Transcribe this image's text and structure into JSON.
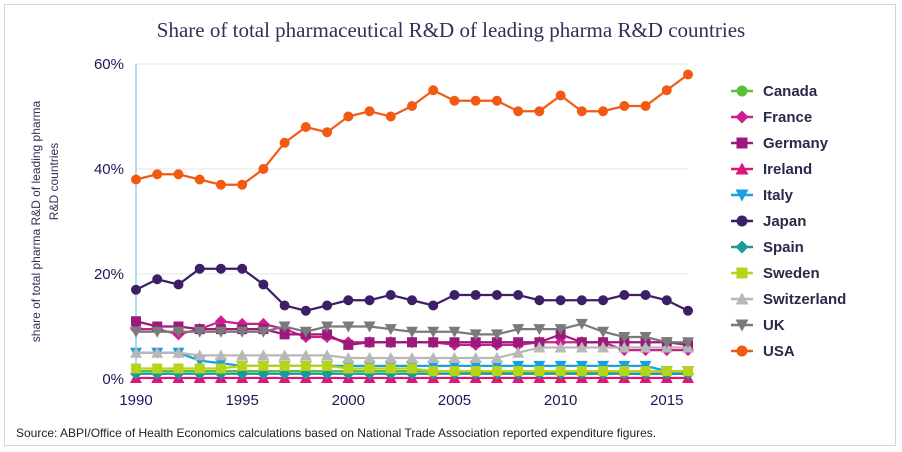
{
  "title": "Share of total pharmaceutical R&D of leading pharma R&D countries",
  "source": "Source: ABPI/Office of Health Economics calculations based on National Trade Association reported expenditure figures.",
  "chart_data": {
    "type": "line",
    "title": "Share of total pharmaceutical R&D of leading pharma R&D countries",
    "ylabel_lines": [
      "share of total pharma R&D of leading pharma",
      "R&D countries"
    ],
    "xlabel": "",
    "x": [
      1990,
      1991,
      1992,
      1993,
      1994,
      1995,
      1996,
      1997,
      1998,
      1999,
      2000,
      2001,
      2002,
      2003,
      2004,
      2005,
      2006,
      2007,
      2008,
      2009,
      2010,
      2011,
      2012,
      2013,
      2014,
      2015,
      2016
    ],
    "xticks": [
      1990,
      1995,
      2000,
      2005,
      2010,
      2015
    ],
    "xtick_labels": [
      "1990",
      "1995",
      "2000",
      "2005",
      "2010",
      "2015"
    ],
    "ylim": [
      0,
      60
    ],
    "yticks": [
      0,
      20,
      40,
      60
    ],
    "ytick_labels": [
      "0%",
      "20%",
      "40%",
      "60%"
    ],
    "grid": "horizontal",
    "legend_position": "right",
    "series": [
      {
        "name": "Canada",
        "color": "#5cbf3a",
        "marker": "circle",
        "values": [
          1.5,
          1.5,
          1.5,
          1.5,
          1.5,
          1.5,
          1.5,
          1.5,
          1.5,
          1.5,
          1.5,
          1.5,
          1.5,
          1.5,
          1.5,
          1.5,
          1.2,
          1.2,
          1.2,
          1.2,
          1.2,
          1.2,
          1.2,
          1.0,
          1.0,
          1.0,
          1.0
        ]
      },
      {
        "name": "France",
        "color": "#cc1f8f",
        "marker": "diamond",
        "values": [
          9.5,
          9.5,
          8.5,
          9.5,
          11,
          10.5,
          10.5,
          9.5,
          8,
          8,
          7,
          7,
          7,
          7,
          7,
          6.5,
          6.5,
          6.5,
          6.5,
          7,
          7,
          7,
          7,
          5.5,
          5.5,
          5.5,
          5.5
        ]
      },
      {
        "name": "Germany",
        "color": "#9b1a7a",
        "marker": "square",
        "values": [
          11,
          10,
          10,
          9.5,
          9.5,
          9.5,
          9.5,
          8.5,
          8.5,
          8.5,
          6.5,
          7,
          7,
          7,
          7,
          7,
          7,
          7,
          7,
          7,
          8.5,
          7,
          7,
          7,
          7,
          7,
          6.5
        ]
      },
      {
        "name": "Ireland",
        "color": "#e0157a",
        "marker": "triangle-up",
        "values": [
          0.2,
          0.2,
          0.2,
          0.2,
          0.2,
          0.2,
          0.2,
          0.2,
          0.2,
          0.2,
          0.2,
          0.2,
          0.2,
          0.2,
          0.2,
          0.2,
          0.2,
          0.2,
          0.2,
          0.2,
          0.2,
          0.2,
          0.2,
          0.2,
          0.2,
          0.2,
          0.2
        ]
      },
      {
        "name": "Italy",
        "color": "#1aa0e0",
        "marker": "triangle-down",
        "values": [
          5,
          5,
          5,
          3.5,
          3,
          2.5,
          2.5,
          2.5,
          2.5,
          2.5,
          2.5,
          2.5,
          2.5,
          2.5,
          2.5,
          2.5,
          2.5,
          2.5,
          2.5,
          2.5,
          2.5,
          2.5,
          2.5,
          2.5,
          2.5,
          1.5,
          1.5
        ]
      },
      {
        "name": "Japan",
        "color": "#3d1f66",
        "marker": "circle",
        "values": [
          17,
          19,
          18,
          21,
          21,
          21,
          18,
          14,
          13,
          14,
          15,
          15,
          16,
          15,
          14,
          16,
          16,
          16,
          16,
          15,
          15,
          15,
          15,
          16,
          16,
          15,
          13
        ]
      },
      {
        "name": "Spain",
        "color": "#1a9a9a",
        "marker": "diamond",
        "values": [
          1,
          1,
          1,
          1,
          1,
          1,
          1,
          1,
          1,
          1,
          1,
          1,
          1,
          1,
          1,
          1,
          1,
          1,
          1,
          1,
          1,
          1,
          1,
          1,
          1,
          1,
          1
        ]
      },
      {
        "name": "Sweden",
        "color": "#b8d41a",
        "marker": "square",
        "values": [
          2,
          2,
          2,
          2,
          2,
          2.5,
          2.5,
          2.5,
          2.5,
          2.5,
          2,
          2,
          2,
          2,
          1.5,
          1.5,
          1.5,
          1.5,
          1.5,
          1.5,
          1.5,
          1.5,
          1.5,
          1.5,
          1.5,
          1.5,
          1.5
        ]
      },
      {
        "name": "Switzerland",
        "color": "#b8b8b8",
        "marker": "triangle-up",
        "values": [
          5,
          5,
          5,
          4.5,
          4.5,
          4.5,
          4.5,
          4.5,
          4.5,
          4.5,
          4,
          4,
          4,
          4,
          4,
          4,
          4,
          4,
          5,
          6,
          6,
          6,
          6,
          6,
          6,
          6,
          6
        ]
      },
      {
        "name": "UK",
        "color": "#7a7a7a",
        "marker": "triangle-down",
        "values": [
          9,
          9,
          9,
          9,
          9,
          9,
          9,
          10,
          9,
          10,
          10,
          10,
          9.5,
          9,
          9,
          9,
          8.5,
          8.5,
          9.5,
          9.5,
          9.5,
          10.5,
          9,
          8,
          8,
          7,
          7
        ]
      },
      {
        "name": "USA",
        "color": "#f25a14",
        "marker": "circle",
        "values": [
          38,
          39,
          39,
          38,
          37,
          37,
          40,
          45,
          48,
          47,
          50,
          51,
          50,
          52,
          55,
          53,
          53,
          53,
          51,
          51,
          54,
          51,
          51,
          52,
          52,
          55,
          58
        ]
      }
    ]
  }
}
